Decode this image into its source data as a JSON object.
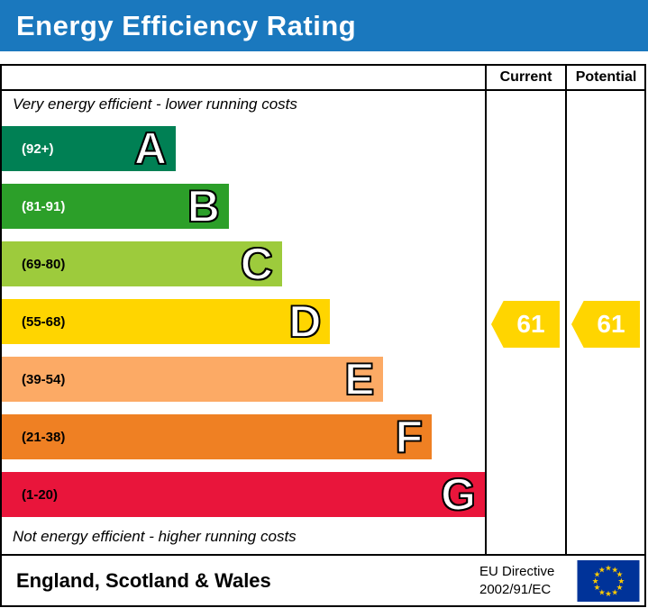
{
  "header": {
    "title": "Energy Efficiency Rating"
  },
  "table_headers": {
    "current": "Current",
    "potential": "Potential"
  },
  "notes": {
    "top": "Very energy efficient - lower running costs",
    "bottom": "Not energy efficient - higher running costs"
  },
  "chart_data": {
    "type": "bar",
    "title": "Energy Efficiency Rating",
    "orientation": "horizontal",
    "bands": [
      {
        "grade": "A",
        "range_label": "(92+)",
        "color": "#008054",
        "text_color": "#ffffff",
        "length_pct": 36
      },
      {
        "grade": "B",
        "range_label": "(81-91)",
        "color": "#2c9f29",
        "text_color": "#ffffff",
        "length_pct": 47
      },
      {
        "grade": "C",
        "range_label": "(69-80)",
        "color": "#9dcb3c",
        "text_color": "#000000",
        "length_pct": 58
      },
      {
        "grade": "D",
        "range_label": "(55-68)",
        "color": "#ffd500",
        "text_color": "#000000",
        "length_pct": 68
      },
      {
        "grade": "E",
        "range_label": "(39-54)",
        "color": "#fcaa65",
        "text_color": "#000000",
        "length_pct": 79
      },
      {
        "grade": "F",
        "range_label": "(21-38)",
        "color": "#ef8023",
        "text_color": "#000000",
        "length_pct": 89
      },
      {
        "grade": "G",
        "range_label": "(1-20)",
        "color": "#e9153b",
        "text_color": "#000000",
        "length_pct": 100
      }
    ],
    "current": 61,
    "potential": 61,
    "current_band": "D",
    "potential_band": "D",
    "arrow_color": "#ffd500"
  },
  "footer": {
    "region": "England, Scotland & Wales",
    "directive_line1": "EU Directive",
    "directive_line2": "2002/91/EC",
    "flag_colors": {
      "field": "#003399",
      "stars": "#ffcc00"
    }
  }
}
